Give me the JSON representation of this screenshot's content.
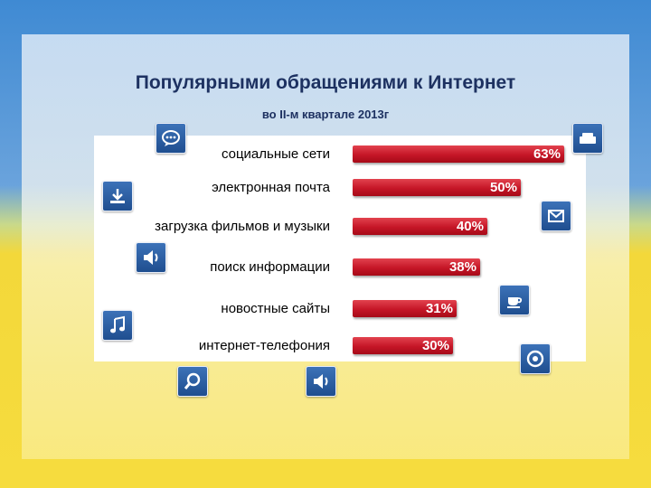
{
  "chart_data": {
    "type": "bar",
    "orientation": "horizontal",
    "title": "Популярными обращениями к Интернет",
    "subtitle": "во II-м квартале 2013г",
    "categories": [
      "социальные сети",
      "электронная почта",
      "загрузка фильмов и музыки",
      "поиск информации",
      "новостные сайты",
      "интернет-телефония"
    ],
    "values": [
      63,
      50,
      40,
      38,
      31,
      30
    ],
    "value_labels": [
      "63%",
      "50%",
      "40%",
      "38%",
      "31%",
      "30%"
    ],
    "unit": "%",
    "xlim": [
      0,
      100
    ],
    "grid": false,
    "legend": "none",
    "bar_color": "#c51627"
  },
  "icons": [
    {
      "name": "chat-bubble-icon"
    },
    {
      "name": "sofa-icon"
    },
    {
      "name": "download-icon"
    },
    {
      "name": "mail-icon"
    },
    {
      "name": "speaker-icon"
    },
    {
      "name": "coffee-cup-icon"
    },
    {
      "name": "music-note-icon"
    },
    {
      "name": "disc-icon"
    },
    {
      "name": "magnifier-icon"
    },
    {
      "name": "speaker-icon"
    }
  ],
  "colors": {
    "title": "#1d3161",
    "flag_blue": "#3f8ad3",
    "flag_yellow": "#f6dc3e",
    "icon_blue": "#2a5da3"
  }
}
